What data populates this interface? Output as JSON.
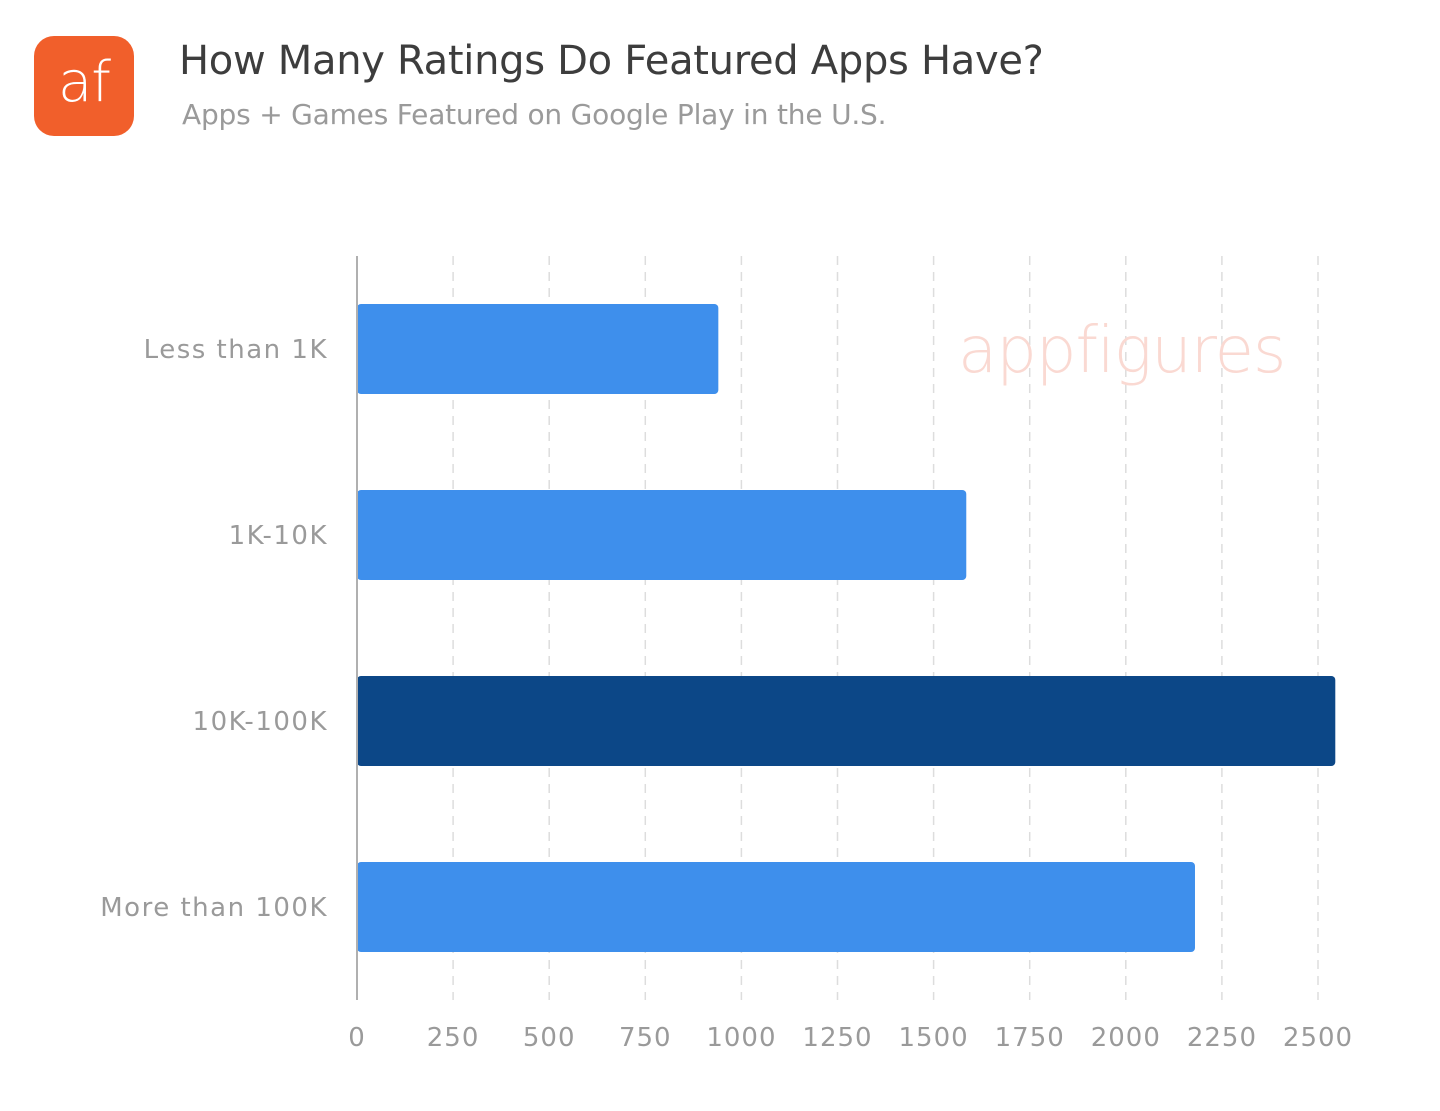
{
  "logo": {
    "text": "af",
    "color": "#F15F2B"
  },
  "header": {
    "title": "How Many Ratings Do Featured Apps Have?",
    "subtitle": "Apps + Games Featured on Google Play in the U.S."
  },
  "watermark": {
    "text": "appfigures",
    "color": "#FAD9D2"
  },
  "colors": {
    "bar_default": "#3E8FEC",
    "bar_highlight": "#0C4787",
    "grid": "#DDDDDD",
    "axis": "#B0B0B0"
  },
  "chart_data": {
    "type": "bar",
    "orientation": "horizontal",
    "categories": [
      "Less than 1K",
      "1K-10K",
      "10K-100K",
      "More than 100K"
    ],
    "values": [
      940,
      1585,
      2545,
      2180
    ],
    "highlight_index": 2,
    "xlim": [
      0,
      2500
    ],
    "xticks": [
      "0",
      "250",
      "500",
      "750",
      "1000",
      "1250",
      "1500",
      "1750",
      "2000",
      "2250",
      "2500"
    ],
    "title": "How Many Ratings Do Featured Apps Have?",
    "subtitle": "Apps + Games Featured on Google Play in the U.S.",
    "grid": true,
    "legend": false
  }
}
